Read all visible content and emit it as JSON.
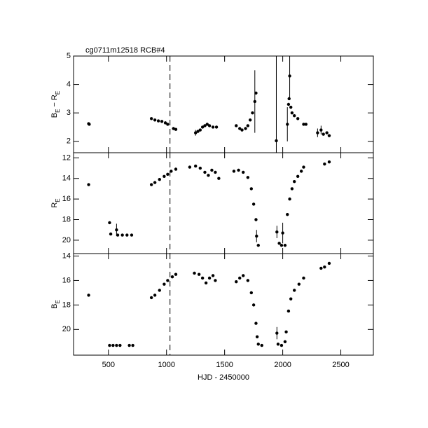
{
  "chart_data": [
    {
      "type": "scatter",
      "title": "cg0711m12518   RCB#4",
      "ylabel": [
        {
          "text": "B"
        },
        {
          "text": "E",
          "sub": true
        },
        {
          "text": " − R"
        },
        {
          "text": "E",
          "sub": true
        }
      ],
      "x": [
        330,
        335,
        870,
        900,
        930,
        960,
        990,
        1010,
        1060,
        1080,
        1250,
        1270,
        1290,
        1310,
        1330,
        1350,
        1370,
        1400,
        1430,
        1600,
        1630,
        1650,
        1680,
        1700,
        1720,
        1740,
        1760,
        1770,
        1945,
        2040,
        2050,
        2055,
        2060,
        2070,
        2080,
        2100,
        2130,
        2180,
        2200,
        2300,
        2330,
        2350,
        2380,
        2400
      ],
      "values": [
        2.62,
        2.6,
        2.8,
        2.75,
        2.72,
        2.7,
        2.65,
        2.6,
        2.45,
        2.42,
        2.3,
        2.35,
        2.4,
        2.5,
        2.55,
        2.6,
        2.55,
        2.5,
        2.5,
        2.55,
        2.45,
        2.4,
        2.45,
        2.55,
        2.75,
        3.0,
        3.4,
        3.7,
        2.02,
        2.6,
        3.3,
        3.5,
        4.3,
        3.2,
        3.0,
        2.9,
        2.8,
        2.6,
        2.6,
        2.3,
        2.4,
        2.25,
        2.3,
        2.2
      ],
      "errors": [
        null,
        null,
        null,
        null,
        null,
        null,
        null,
        null,
        null,
        null,
        0.1,
        null,
        null,
        null,
        null,
        null,
        null,
        null,
        null,
        null,
        null,
        null,
        null,
        null,
        null,
        null,
        1.1,
        null,
        3.2,
        0.6,
        null,
        null,
        0.8,
        null,
        null,
        null,
        null,
        null,
        null,
        0.15,
        0.15,
        null,
        null,
        null
      ],
      "color": "#000000",
      "xlim": [
        200,
        2780
      ],
      "ylim": [
        1.6,
        5
      ],
      "yticks": [
        2,
        3,
        4,
        5
      ],
      "xticks": [
        500,
        1000,
        1500,
        2000,
        2500
      ],
      "vline": 1030
    },
    {
      "type": "scatter",
      "ylabel": [
        {
          "text": "R"
        },
        {
          "text": "E",
          "sub": true
        }
      ],
      "x": [
        330,
        510,
        520,
        570,
        580,
        620,
        660,
        700,
        870,
        900,
        940,
        980,
        1010,
        1040,
        1080,
        1200,
        1250,
        1290,
        1330,
        1360,
        1390,
        1420,
        1450,
        1580,
        1620,
        1660,
        1700,
        1730,
        1750,
        1770,
        1775,
        1790,
        1950,
        1970,
        1990,
        2000,
        2020,
        2040,
        2060,
        2080,
        2100,
        2130,
        2160,
        2180,
        2360,
        2400
      ],
      "values": [
        14.6,
        18.3,
        19.4,
        19.0,
        19.5,
        19.5,
        19.5,
        19.5,
        14.6,
        14.4,
        14.1,
        13.8,
        13.6,
        13.3,
        13.1,
        12.9,
        12.8,
        13.0,
        13.4,
        13.7,
        13.2,
        13.4,
        14.0,
        13.3,
        13.2,
        13.4,
        13.9,
        15.0,
        16.5,
        18.0,
        19.6,
        20.5,
        19.2,
        20.3,
        20.5,
        19.3,
        20.5,
        17.5,
        16.0,
        15.0,
        14.3,
        13.8,
        13.3,
        12.9,
        12.6,
        12.4
      ],
      "errors": [
        null,
        null,
        null,
        0.6,
        null,
        null,
        null,
        null,
        null,
        null,
        null,
        null,
        null,
        null,
        null,
        null,
        null,
        null,
        null,
        null,
        null,
        null,
        null,
        null,
        null,
        null,
        null,
        null,
        null,
        null,
        0.6,
        null,
        0.6,
        null,
        null,
        1.0,
        null,
        null,
        null,
        null,
        null,
        null,
        null,
        null,
        null,
        null
      ],
      "color": "#000000",
      "xlim": [
        200,
        2780
      ],
      "ylim": [
        21.3,
        11.5
      ],
      "yticks": [
        12,
        14,
        16,
        18,
        20
      ],
      "xticks": [
        500,
        1000,
        1500,
        2000,
        2500
      ],
      "vline": 1030
    },
    {
      "type": "scatter",
      "xlabel": "HJD - 2450000",
      "ylabel": [
        {
          "text": "B"
        },
        {
          "text": "E",
          "sub": true
        }
      ],
      "x": [
        330,
        510,
        540,
        570,
        600,
        680,
        710,
        870,
        900,
        940,
        980,
        1010,
        1050,
        1080,
        1240,
        1280,
        1310,
        1340,
        1370,
        1400,
        1420,
        1600,
        1630,
        1660,
        1700,
        1730,
        1750,
        1770,
        1780,
        1790,
        1820,
        1950,
        1960,
        1990,
        2020,
        2030,
        2050,
        2070,
        2100,
        2140,
        2180,
        2330,
        2360,
        2400
      ],
      "values": [
        17.2,
        21.3,
        21.3,
        21.3,
        21.3,
        21.3,
        21.3,
        17.4,
        17.2,
        16.8,
        16.3,
        16.0,
        15.7,
        15.5,
        15.4,
        15.5,
        15.8,
        16.2,
        15.8,
        15.6,
        16.0,
        16.1,
        15.8,
        15.6,
        16.0,
        17.0,
        18.0,
        19.5,
        20.6,
        21.2,
        21.3,
        20.3,
        21.2,
        21.3,
        21.0,
        20.2,
        18.5,
        17.5,
        16.8,
        16.3,
        15.8,
        15.0,
        14.9,
        14.6
      ],
      "errors": [
        null,
        null,
        null,
        null,
        null,
        null,
        null,
        null,
        null,
        null,
        null,
        null,
        null,
        null,
        null,
        null,
        null,
        null,
        null,
        null,
        null,
        null,
        null,
        null,
        null,
        null,
        null,
        null,
        null,
        null,
        null,
        0.5,
        null,
        null,
        null,
        null,
        null,
        null,
        null,
        null,
        null,
        null,
        null,
        null
      ],
      "color": "#000000",
      "xlim": [
        200,
        2780
      ],
      "ylim": [
        22.1,
        13.8
      ],
      "yticks": [
        14,
        16,
        18,
        20
      ],
      "xticks": [
        500,
        1000,
        1500,
        2000,
        2500
      ],
      "xtick_labels": true,
      "vline": 1030
    }
  ]
}
